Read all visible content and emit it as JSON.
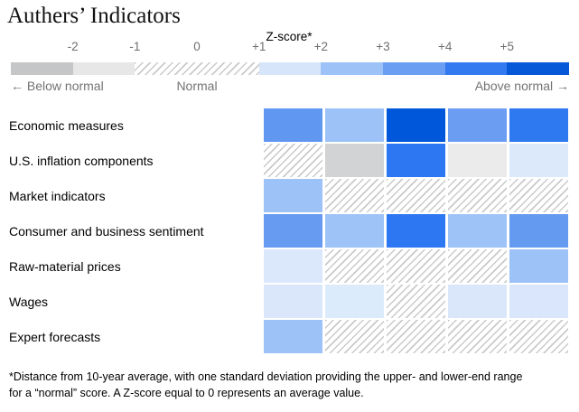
{
  "title": "Authers’ Indicators",
  "scale": {
    "axis_label": "Z-score*",
    "min": -3,
    "max": 6,
    "ticks": [
      {
        "label": "-2",
        "z": -2
      },
      {
        "label": "-1",
        "z": -1
      },
      {
        "label": "0",
        "z": 0
      },
      {
        "label": "+1",
        "z": 1
      },
      {
        "label": "+2",
        "z": 2
      },
      {
        "label": "+3",
        "z": 3
      },
      {
        "label": "+4",
        "z": 4
      },
      {
        "label": "+5",
        "z": 5
      }
    ],
    "segments": [
      {
        "from": -3,
        "to": -2,
        "color": "#c5c6c7",
        "meaning": "far below normal"
      },
      {
        "from": -2,
        "to": -1,
        "color": "#e7e7e8",
        "meaning": "below normal"
      },
      {
        "from": -1,
        "to": 1,
        "pattern": "hatch",
        "meaning": "normal"
      },
      {
        "from": 1,
        "to": 2,
        "color": "#d7e5fb",
        "meaning": "+1 to +2"
      },
      {
        "from": 2,
        "to": 3,
        "color": "#9cc2f7",
        "meaning": "+2 to +3"
      },
      {
        "from": 3,
        "to": 4,
        "color": "#699ef3",
        "meaning": "+3 to +4"
      },
      {
        "from": 4,
        "to": 5,
        "color": "#3379ef",
        "meaning": "+4 to +5"
      },
      {
        "from": 5,
        "to": 6,
        "color": "#0757d9",
        "meaning": "+5 and up"
      }
    ],
    "below_label": "← Below normal",
    "normal_label": "Normal",
    "above_label": "Above normal →"
  },
  "chart_data": {
    "type": "heatmap",
    "title": "Authers’ Indicators",
    "x_axis": "Z-score (distance from 10-year average, in standard deviations)",
    "legend_bands": [
      "below -2 (dark gray)",
      "-2 to -1 (light gray)",
      "normal -1 to +1 (hatched)",
      "+1 to +2",
      "+2 to +3",
      "+3 to +4",
      "+4 to +5",
      "+5 and up"
    ],
    "rows": [
      {
        "label": "Economic measures",
        "cells": [
          {
            "color": "#6098f1",
            "band": "+3 to +4"
          },
          {
            "color": "#9cc2f7",
            "band": "+2 to +3"
          },
          {
            "color": "#0057da",
            "band": "+5 and up"
          },
          {
            "color": "#6b9ef3",
            "band": "+3 to +4"
          },
          {
            "color": "#2e79f0",
            "band": "+4 to +5"
          }
        ]
      },
      {
        "label": "U.S. inflation components",
        "cells": [
          {
            "pattern": "hatch",
            "band": "normal (-1 to +1)"
          },
          {
            "color": "#d2d3d4",
            "band": "below normal (≈ -2)"
          },
          {
            "color": "#2e77f2",
            "band": "+4 to +5"
          },
          {
            "color": "#ebebec",
            "band": "-2 to -1"
          },
          {
            "color": "#dbe9fb",
            "band": "+1 to +2"
          }
        ]
      },
      {
        "label": "Market indicators",
        "cells": [
          {
            "color": "#9cc2f7",
            "band": "+2 to +3"
          },
          {
            "pattern": "hatch",
            "band": "normal (-1 to +1)"
          },
          {
            "pattern": "hatch",
            "band": "normal (-1 to +1)"
          },
          {
            "pattern": "hatch",
            "band": "normal (-1 to +1)"
          },
          {
            "pattern": "hatch",
            "band": "normal (-1 to +1)"
          }
        ]
      },
      {
        "label": "Consumer and business sentiment",
        "cells": [
          {
            "color": "#679bf2",
            "band": "+3 to +4"
          },
          {
            "color": "#9dc3f7",
            "band": "+2 to +3"
          },
          {
            "color": "#2e77f2",
            "band": "+4 to +5"
          },
          {
            "color": "#9dc3f7",
            "band": "+2 to +3"
          },
          {
            "color": "#659af1",
            "band": "+3 to +4"
          }
        ]
      },
      {
        "label": "Raw-material prices",
        "cells": [
          {
            "color": "#dbe8fc",
            "band": "+1 to +2"
          },
          {
            "pattern": "hatch",
            "band": "normal (-1 to +1)"
          },
          {
            "pattern": "hatch",
            "band": "normal (-1 to +1)"
          },
          {
            "pattern": "hatch",
            "band": "normal (-1 to +1)"
          },
          {
            "color": "#9cc2f7",
            "band": "+2 to +3"
          }
        ]
      },
      {
        "label": "Wages",
        "cells": [
          {
            "color": "#dae7fb",
            "band": "+1 to +2"
          },
          {
            "color": "#dcebfc",
            "band": "+1 to +2"
          },
          {
            "pattern": "hatch",
            "band": "normal (-1 to +1)"
          },
          {
            "color": "#dae7fb",
            "band": "+1 to +2"
          },
          {
            "color": "#d9e6fb",
            "band": "+1 to +2"
          }
        ]
      },
      {
        "label": "Expert forecasts",
        "cells": [
          {
            "color": "#9cc2f7",
            "band": "+2 to +3"
          },
          {
            "pattern": "hatch",
            "band": "normal (-1 to +1)"
          },
          {
            "pattern": "hatch",
            "band": "normal (-1 to +1)"
          },
          {
            "pattern": "hatch",
            "band": "normal (-1 to +1)"
          },
          {
            "pattern": "hatch",
            "band": "normal (-1 to +1)"
          }
        ]
      }
    ]
  },
  "footnote_lines": {
    "line1": "*Distance from 10-year average, with one standard deviation providing the upper- and lower-end range",
    "line2": "for a “normal” score. A Z-score equal to 0 represents an average value."
  }
}
